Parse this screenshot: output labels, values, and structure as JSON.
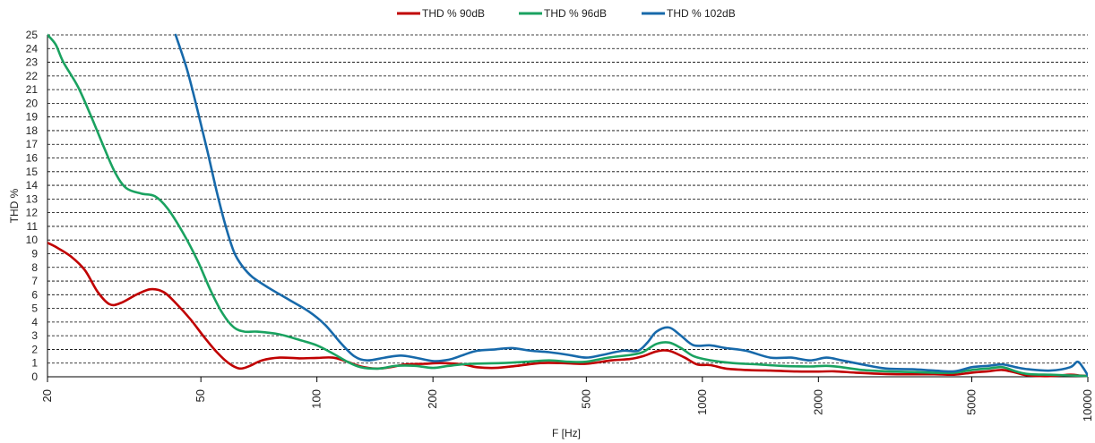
{
  "chart_data": {
    "type": "line",
    "title": "",
    "xlabel": "F [Hz]",
    "ylabel": "THD %",
    "xscale": "log",
    "xlim": [
      20,
      10000
    ],
    "ylim": [
      0,
      25
    ],
    "grid": "horizontal dashed",
    "legend_position": "top-center",
    "x_ticks": [
      20,
      50,
      100,
      200,
      500,
      1000,
      2000,
      5000,
      10000
    ],
    "x_tick_labels": [
      "20",
      "50",
      "100",
      "200",
      "500",
      "1000",
      "2000",
      "5000",
      "10000"
    ],
    "y_ticks": [
      0,
      1,
      2,
      3,
      4,
      5,
      6,
      7,
      8,
      9,
      10,
      11,
      12,
      13,
      14,
      15,
      16,
      17,
      18,
      19,
      20,
      21,
      22,
      23,
      24,
      25
    ],
    "y_tick_labels": [
      "0",
      "1",
      "2",
      "3",
      "4",
      "5",
      "6",
      "7",
      "8",
      "9",
      "10",
      "11",
      "12",
      "13",
      "14",
      "15",
      "16",
      "17",
      "18",
      "19",
      "20",
      "21",
      "22",
      "23",
      "24",
      "25"
    ],
    "series": [
      {
        "name": "THD % 90dB",
        "color": "#c00000",
        "points": [
          [
            20,
            9.8
          ],
          [
            21,
            9.5
          ],
          [
            23,
            8.8
          ],
          [
            25,
            7.8
          ],
          [
            27,
            6.2
          ],
          [
            29,
            5.3
          ],
          [
            31,
            5.4
          ],
          [
            34,
            6.0
          ],
          [
            37,
            6.4
          ],
          [
            40,
            6.2
          ],
          [
            43,
            5.4
          ],
          [
            47,
            4.2
          ],
          [
            51,
            2.9
          ],
          [
            55,
            1.8
          ],
          [
            59,
            1.0
          ],
          [
            63,
            0.6
          ],
          [
            67,
            0.8
          ],
          [
            72,
            1.2
          ],
          [
            80,
            1.4
          ],
          [
            90,
            1.35
          ],
          [
            100,
            1.38
          ],
          [
            110,
            1.4
          ],
          [
            120,
            1.1
          ],
          [
            130,
            0.75
          ],
          [
            143,
            0.6
          ],
          [
            155,
            0.7
          ],
          [
            170,
            0.9
          ],
          [
            190,
            0.95
          ],
          [
            210,
            1.0
          ],
          [
            240,
            0.9
          ],
          [
            260,
            0.7
          ],
          [
            290,
            0.65
          ],
          [
            330,
            0.8
          ],
          [
            380,
            1.0
          ],
          [
            430,
            1.0
          ],
          [
            500,
            0.95
          ],
          [
            580,
            1.2
          ],
          [
            650,
            1.3
          ],
          [
            700,
            1.5
          ],
          [
            760,
            1.85
          ],
          [
            820,
            1.9
          ],
          [
            900,
            1.4
          ],
          [
            970,
            0.9
          ],
          [
            1050,
            0.85
          ],
          [
            1150,
            0.6
          ],
          [
            1300,
            0.5
          ],
          [
            1500,
            0.45
          ],
          [
            1700,
            0.4
          ],
          [
            2000,
            0.38
          ],
          [
            2200,
            0.4
          ],
          [
            2500,
            0.3
          ],
          [
            3000,
            0.2
          ],
          [
            3500,
            0.18
          ],
          [
            4000,
            0.18
          ],
          [
            4500,
            0.15
          ],
          [
            5000,
            0.3
          ],
          [
            5500,
            0.4
          ],
          [
            6000,
            0.5
          ],
          [
            6500,
            0.3
          ],
          [
            7000,
            0.1
          ],
          [
            8000,
            0.05
          ],
          [
            9000,
            0.15
          ],
          [
            9500,
            0.1
          ],
          [
            10000,
            0.05
          ]
        ]
      },
      {
        "name": "THD % 96dB",
        "color": "#1aa260",
        "points": [
          [
            20,
            25
          ],
          [
            21,
            24.3
          ],
          [
            22,
            23.0
          ],
          [
            24,
            21.2
          ],
          [
            26,
            19.0
          ],
          [
            28,
            16.8
          ],
          [
            30,
            14.9
          ],
          [
            32,
            13.8
          ],
          [
            35,
            13.4
          ],
          [
            38,
            13.2
          ],
          [
            41,
            12.3
          ],
          [
            45,
            10.5
          ],
          [
            49,
            8.5
          ],
          [
            53,
            6.3
          ],
          [
            57,
            4.6
          ],
          [
            61,
            3.6
          ],
          [
            65,
            3.3
          ],
          [
            70,
            3.3
          ],
          [
            80,
            3.1
          ],
          [
            90,
            2.7
          ],
          [
            100,
            2.3
          ],
          [
            110,
            1.7
          ],
          [
            120,
            1.1
          ],
          [
            130,
            0.7
          ],
          [
            145,
            0.6
          ],
          [
            160,
            0.8
          ],
          [
            180,
            0.8
          ],
          [
            200,
            0.65
          ],
          [
            220,
            0.8
          ],
          [
            250,
            0.95
          ],
          [
            300,
            1.0
          ],
          [
            350,
            1.1
          ],
          [
            400,
            1.2
          ],
          [
            450,
            1.1
          ],
          [
            500,
            1.1
          ],
          [
            570,
            1.4
          ],
          [
            650,
            1.6
          ],
          [
            700,
            1.8
          ],
          [
            760,
            2.4
          ],
          [
            820,
            2.5
          ],
          [
            880,
            2.1
          ],
          [
            950,
            1.5
          ],
          [
            1050,
            1.2
          ],
          [
            1200,
            1.0
          ],
          [
            1400,
            0.9
          ],
          [
            1600,
            0.8
          ],
          [
            1900,
            0.75
          ],
          [
            2100,
            0.8
          ],
          [
            2300,
            0.7
          ],
          [
            2600,
            0.5
          ],
          [
            3000,
            0.4
          ],
          [
            3500,
            0.35
          ],
          [
            4000,
            0.3
          ],
          [
            4500,
            0.3
          ],
          [
            5000,
            0.5
          ],
          [
            5500,
            0.6
          ],
          [
            6000,
            0.7
          ],
          [
            6500,
            0.4
          ],
          [
            7000,
            0.2
          ],
          [
            8000,
            0.15
          ],
          [
            9000,
            0.1
          ],
          [
            10000,
            0.05
          ]
        ]
      },
      {
        "name": "THD % 102dB",
        "color": "#1769aa",
        "points": [
          [
            43,
            25
          ],
          [
            46,
            22.5
          ],
          [
            49,
            19.5
          ],
          [
            52,
            16.5
          ],
          [
            55,
            13.5
          ],
          [
            58,
            11
          ],
          [
            61,
            9.1
          ],
          [
            64,
            8.1
          ],
          [
            68,
            7.3
          ],
          [
            75,
            6.5
          ],
          [
            85,
            5.6
          ],
          [
            95,
            4.8
          ],
          [
            105,
            3.8
          ],
          [
            115,
            2.5
          ],
          [
            125,
            1.5
          ],
          [
            135,
            1.2
          ],
          [
            150,
            1.4
          ],
          [
            165,
            1.55
          ],
          [
            180,
            1.4
          ],
          [
            200,
            1.15
          ],
          [
            220,
            1.25
          ],
          [
            240,
            1.6
          ],
          [
            260,
            1.9
          ],
          [
            290,
            2.0
          ],
          [
            320,
            2.1
          ],
          [
            360,
            1.9
          ],
          [
            400,
            1.8
          ],
          [
            450,
            1.6
          ],
          [
            500,
            1.4
          ],
          [
            550,
            1.6
          ],
          [
            620,
            1.9
          ],
          [
            680,
            1.9
          ],
          [
            720,
            2.5
          ],
          [
            760,
            3.3
          ],
          [
            820,
            3.6
          ],
          [
            880,
            3.0
          ],
          [
            950,
            2.3
          ],
          [
            1050,
            2.3
          ],
          [
            1150,
            2.1
          ],
          [
            1300,
            1.9
          ],
          [
            1500,
            1.4
          ],
          [
            1700,
            1.4
          ],
          [
            1900,
            1.2
          ],
          [
            2100,
            1.4
          ],
          [
            2300,
            1.2
          ],
          [
            2600,
            0.9
          ],
          [
            3000,
            0.6
          ],
          [
            3500,
            0.55
          ],
          [
            4000,
            0.45
          ],
          [
            4500,
            0.4
          ],
          [
            5000,
            0.7
          ],
          [
            5500,
            0.8
          ],
          [
            6000,
            0.9
          ],
          [
            6500,
            0.7
          ],
          [
            7000,
            0.55
          ],
          [
            8000,
            0.45
          ],
          [
            9000,
            0.7
          ],
          [
            9400,
            1.1
          ],
          [
            9700,
            0.7
          ],
          [
            10000,
            0.1
          ]
        ]
      }
    ]
  }
}
